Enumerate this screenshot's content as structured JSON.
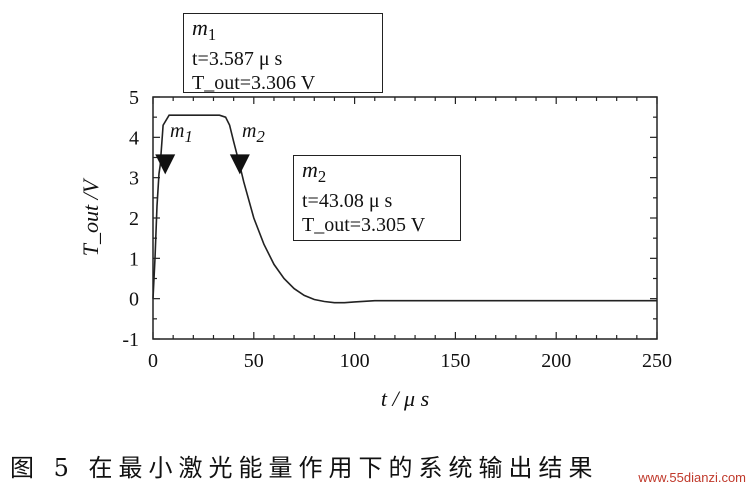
{
  "chart_data": {
    "type": "line",
    "xlabel": "t / μ s",
    "ylabel": "T_out /V",
    "xlim": [
      0,
      250
    ],
    "ylim": [
      -1,
      5
    ],
    "x_ticks": [
      "0",
      "50",
      "100",
      "150",
      "200",
      "250"
    ],
    "y_ticks": [
      "-1",
      "0",
      "1",
      "2",
      "3",
      "4",
      "5"
    ],
    "grid": false,
    "series": [
      {
        "x": [
          0,
          1,
          2,
          3,
          3.587,
          5,
          8,
          10,
          15,
          20,
          25,
          30,
          33,
          36,
          38,
          40,
          43.08,
          45,
          50,
          55,
          60,
          65,
          70,
          75,
          80,
          85,
          90,
          95,
          100,
          110,
          120,
          150,
          200,
          250
        ],
        "y": [
          0,
          1.0,
          2.3,
          3.1,
          3.306,
          4.3,
          4.55,
          4.55,
          4.55,
          4.55,
          4.55,
          4.55,
          4.55,
          4.5,
          4.3,
          3.9,
          3.305,
          2.9,
          2.0,
          1.35,
          0.85,
          0.5,
          0.25,
          0.08,
          -0.02,
          -0.07,
          -0.1,
          -0.1,
          -0.08,
          -0.05,
          -0.05,
          -0.05,
          -0.05,
          -0.05
        ]
      }
    ],
    "markers": [
      {
        "name": "m",
        "sub": "1",
        "t_line": "t=3.587 μ s",
        "v_line": "T_out=3.306 V",
        "x": 3.587,
        "y": 3.306
      },
      {
        "name": "m",
        "sub": "2",
        "t_line": "t=43.08 μ s",
        "v_line": "T_out=3.305 V",
        "x": 43.08,
        "y": 3.305
      }
    ]
  },
  "caption": "图 5  在最小激光能量作用下的系统输出结果",
  "watermark": "www.55dianzi.com"
}
